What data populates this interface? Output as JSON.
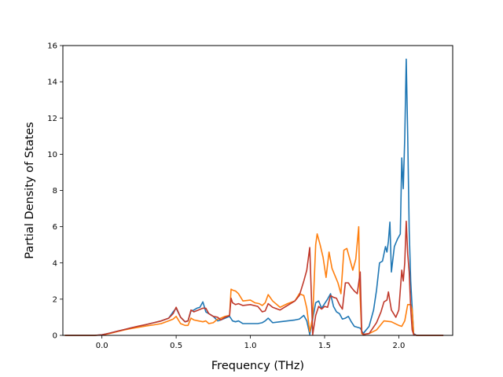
{
  "chart_data": {
    "type": "line",
    "title": "",
    "xlabel": "Frequency (THz)",
    "ylabel": "Partial Density of States",
    "xlim": [
      -0.263,
      2.363
    ],
    "ylim": [
      0,
      16
    ],
    "x_ticks": [
      0.0,
      0.5,
      1.0,
      1.5,
      2.0
    ],
    "x_tick_labels": [
      "0.0",
      "0.5",
      "1.0",
      "1.5",
      "2.0"
    ],
    "y_ticks": [
      0,
      2,
      4,
      6,
      8,
      10,
      12,
      14,
      16
    ],
    "y_tick_labels": [
      "0",
      "2",
      "4",
      "6",
      "8",
      "10",
      "12",
      "14",
      "16"
    ],
    "grid": false,
    "legend": null,
    "series": [
      {
        "color": "#1f77b4",
        "x": [
          -0.25,
          -0.05,
          0.0,
          0.05,
          0.1,
          0.15,
          0.2,
          0.25,
          0.3,
          0.35,
          0.4,
          0.45,
          0.48,
          0.5,
          0.53,
          0.56,
          0.58,
          0.6,
          0.62,
          0.64,
          0.66,
          0.68,
          0.7,
          0.72,
          0.75,
          0.78,
          0.8,
          0.83,
          0.86,
          0.88,
          0.9,
          0.92,
          0.95,
          1.0,
          1.05,
          1.08,
          1.1,
          1.12,
          1.15,
          1.2,
          1.25,
          1.3,
          1.33,
          1.36,
          1.38,
          1.4,
          1.42,
          1.44,
          1.46,
          1.48,
          1.5,
          1.52,
          1.54,
          1.56,
          1.58,
          1.6,
          1.62,
          1.64,
          1.66,
          1.68,
          1.7,
          1.72,
          1.74,
          1.76,
          1.8,
          1.83,
          1.85,
          1.87,
          1.89,
          1.91,
          1.92,
          1.93,
          1.94,
          1.95,
          1.97,
          1.99,
          2.01,
          2.02,
          2.03,
          2.04,
          2.05,
          2.06,
          2.07,
          2.08,
          2.09,
          2.1,
          2.12,
          2.2,
          2.3
        ],
        "y": [
          0,
          0,
          0.03,
          0.12,
          0.22,
          0.32,
          0.42,
          0.5,
          0.6,
          0.7,
          0.8,
          0.95,
          1.3,
          1.5,
          1.0,
          0.75,
          0.8,
          1.35,
          1.4,
          1.5,
          1.55,
          1.85,
          1.3,
          1.2,
          1.05,
          0.8,
          0.85,
          0.95,
          1.05,
          0.8,
          0.75,
          0.8,
          0.65,
          0.65,
          0.65,
          0.7,
          0.8,
          0.95,
          0.7,
          0.75,
          0.8,
          0.85,
          0.9,
          1.1,
          0.8,
          0.05,
          0.9,
          1.8,
          1.9,
          1.5,
          1.75,
          2.0,
          2.3,
          1.6,
          1.3,
          1.2,
          0.9,
          0.95,
          1.05,
          0.75,
          0.5,
          0.45,
          0.4,
          0.1,
          0.5,
          1.4,
          2.5,
          4.0,
          4.1,
          4.9,
          4.6,
          5.2,
          6.25,
          3.5,
          4.9,
          5.3,
          5.6,
          9.8,
          8.1,
          10.9,
          15.25,
          11.0,
          5.8,
          3.0,
          1.5,
          0.1,
          0,
          0,
          0
        ]
      },
      {
        "color": "#ff7f0e",
        "x": [
          -0.25,
          -0.05,
          0.0,
          0.05,
          0.1,
          0.15,
          0.2,
          0.25,
          0.3,
          0.35,
          0.4,
          0.45,
          0.48,
          0.5,
          0.53,
          0.56,
          0.58,
          0.6,
          0.62,
          0.65,
          0.68,
          0.7,
          0.72,
          0.75,
          0.78,
          0.8,
          0.83,
          0.86,
          0.87,
          0.88,
          0.9,
          0.92,
          0.95,
          1.0,
          1.03,
          1.06,
          1.08,
          1.1,
          1.12,
          1.15,
          1.2,
          1.25,
          1.3,
          1.33,
          1.36,
          1.38,
          1.4,
          1.42,
          1.44,
          1.45,
          1.47,
          1.49,
          1.51,
          1.53,
          1.55,
          1.57,
          1.59,
          1.61,
          1.63,
          1.65,
          1.67,
          1.69,
          1.71,
          1.73,
          1.735,
          1.75,
          1.76,
          1.8,
          1.85,
          1.9,
          1.95,
          2.0,
          2.02,
          2.04,
          2.06,
          2.08,
          2.09,
          2.1,
          2.12,
          2.2,
          2.3
        ],
        "y": [
          0,
          0,
          0.02,
          0.1,
          0.2,
          0.3,
          0.38,
          0.45,
          0.52,
          0.58,
          0.65,
          0.8,
          0.9,
          1.05,
          0.65,
          0.55,
          0.55,
          0.95,
          0.85,
          0.8,
          0.75,
          0.8,
          0.65,
          0.7,
          0.9,
          0.95,
          1.05,
          1.1,
          2.55,
          2.5,
          2.45,
          2.3,
          1.9,
          1.95,
          1.8,
          1.75,
          1.65,
          1.8,
          2.25,
          1.9,
          1.55,
          1.75,
          1.9,
          2.3,
          2.2,
          1.5,
          0.2,
          1.0,
          5.0,
          5.6,
          5.0,
          4.3,
          3.2,
          4.6,
          3.7,
          3.3,
          2.9,
          2.3,
          4.7,
          4.8,
          4.2,
          3.6,
          4.2,
          6.0,
          3.0,
          0.1,
          0.05,
          0.1,
          0.3,
          0.8,
          0.75,
          0.55,
          0.5,
          0.8,
          1.7,
          1.7,
          1.4,
          0.05,
          0,
          0,
          0
        ]
      },
      {
        "color": "#c0392b",
        "x": [
          -0.25,
          -0.05,
          0.0,
          0.05,
          0.1,
          0.15,
          0.2,
          0.25,
          0.3,
          0.35,
          0.4,
          0.45,
          0.48,
          0.5,
          0.53,
          0.56,
          0.58,
          0.6,
          0.62,
          0.65,
          0.68,
          0.7,
          0.72,
          0.75,
          0.78,
          0.8,
          0.83,
          0.86,
          0.87,
          0.88,
          0.9,
          0.92,
          0.95,
          1.0,
          1.05,
          1.08,
          1.1,
          1.12,
          1.15,
          1.2,
          1.25,
          1.3,
          1.33,
          1.36,
          1.38,
          1.4,
          1.42,
          1.44,
          1.46,
          1.48,
          1.5,
          1.52,
          1.54,
          1.56,
          1.58,
          1.6,
          1.62,
          1.64,
          1.66,
          1.68,
          1.7,
          1.72,
          1.74,
          1.75,
          1.76,
          1.8,
          1.85,
          1.88,
          1.9,
          1.92,
          1.93,
          1.95,
          1.98,
          2.0,
          2.02,
          2.03,
          2.04,
          2.05,
          2.06,
          2.07,
          2.08,
          2.09,
          2.1,
          2.12,
          2.2,
          2.3
        ],
        "y": [
          0,
          0,
          0.03,
          0.12,
          0.22,
          0.32,
          0.42,
          0.52,
          0.6,
          0.7,
          0.8,
          0.95,
          1.2,
          1.55,
          1.0,
          0.75,
          0.8,
          1.4,
          1.3,
          1.4,
          1.5,
          1.5,
          1.2,
          1.05,
          1.0,
          0.85,
          1.0,
          1.1,
          2.05,
          1.8,
          1.7,
          1.75,
          1.65,
          1.7,
          1.6,
          1.3,
          1.35,
          1.75,
          1.55,
          1.4,
          1.65,
          1.9,
          2.2,
          3.0,
          3.6,
          4.85,
          0.05,
          1.1,
          1.6,
          1.45,
          1.6,
          1.55,
          2.2,
          2.1,
          2.05,
          1.7,
          1.45,
          2.9,
          2.9,
          2.65,
          2.45,
          2.3,
          3.5,
          0.2,
          0.05,
          0.1,
          0.7,
          1.3,
          1.85,
          1.95,
          2.4,
          1.4,
          1.0,
          1.4,
          3.6,
          3.0,
          4.0,
          6.3,
          4.5,
          3.5,
          1.5,
          0.3,
          0.05,
          0,
          0,
          0
        ]
      }
    ]
  }
}
